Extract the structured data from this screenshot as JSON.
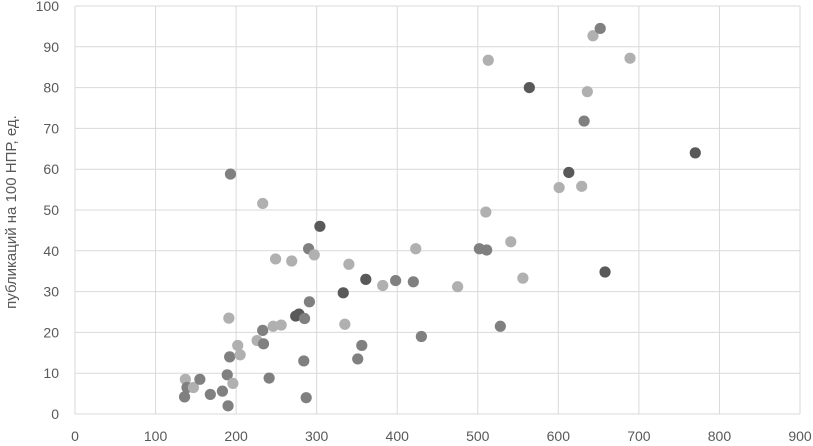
{
  "chart_data": {
    "type": "scatter",
    "xlabel": "",
    "ylabel": "публикаций на 100 НПР, ед.",
    "xlim": [
      0,
      900
    ],
    "ylim": [
      0,
      100
    ],
    "x_ticks": [
      "0",
      "100",
      "200",
      "300",
      "400",
      "500",
      "600",
      "700",
      "800",
      "900"
    ],
    "y_ticks": [
      "0",
      "10",
      "20",
      "30",
      "40",
      "50",
      "60",
      "70",
      "80",
      "90",
      "100"
    ],
    "grid": true,
    "colors": {
      "dark": "#595959",
      "medium": "#808080",
      "light": "#b0b0b0",
      "grid": "#d9d9d9"
    },
    "points": [
      {
        "x": 137,
        "y": 8.5,
        "c": "light"
      },
      {
        "x": 139,
        "y": 6.5,
        "c": "medium"
      },
      {
        "x": 147,
        "y": 6.5,
        "c": "light"
      },
      {
        "x": 155,
        "y": 8.5,
        "c": "medium"
      },
      {
        "x": 136,
        "y": 4.2,
        "c": "medium"
      },
      {
        "x": 168,
        "y": 4.8,
        "c": "medium"
      },
      {
        "x": 183,
        "y": 5.6,
        "c": "medium"
      },
      {
        "x": 189,
        "y": 9.6,
        "c": "medium"
      },
      {
        "x": 190,
        "y": 2.0,
        "c": "medium"
      },
      {
        "x": 192,
        "y": 14.0,
        "c": "medium"
      },
      {
        "x": 191,
        "y": 23.5,
        "c": "light"
      },
      {
        "x": 196,
        "y": 7.5,
        "c": "light"
      },
      {
        "x": 202,
        "y": 16.8,
        "c": "light"
      },
      {
        "x": 205,
        "y": 14.5,
        "c": "light"
      },
      {
        "x": 193,
        "y": 58.8,
        "c": "medium"
      },
      {
        "x": 226,
        "y": 18.0,
        "c": "light"
      },
      {
        "x": 233,
        "y": 20.5,
        "c": "medium"
      },
      {
        "x": 234,
        "y": 17.2,
        "c": "medium"
      },
      {
        "x": 233,
        "y": 51.6,
        "c": "light"
      },
      {
        "x": 241,
        "y": 8.8,
        "c": "medium"
      },
      {
        "x": 246,
        "y": 21.5,
        "c": "light"
      },
      {
        "x": 249,
        "y": 38.0,
        "c": "light"
      },
      {
        "x": 256,
        "y": 21.8,
        "c": "light"
      },
      {
        "x": 269,
        "y": 37.5,
        "c": "light"
      },
      {
        "x": 274,
        "y": 24.0,
        "c": "dark"
      },
      {
        "x": 278,
        "y": 24.5,
        "c": "dark"
      },
      {
        "x": 285,
        "y": 23.4,
        "c": "medium"
      },
      {
        "x": 284,
        "y": 13.0,
        "c": "medium"
      },
      {
        "x": 287,
        "y": 4.0,
        "c": "medium"
      },
      {
        "x": 291,
        "y": 27.5,
        "c": "medium"
      },
      {
        "x": 290,
        "y": 40.5,
        "c": "medium"
      },
      {
        "x": 297,
        "y": 39.0,
        "c": "light"
      },
      {
        "x": 304,
        "y": 46.0,
        "c": "dark"
      },
      {
        "x": 333,
        "y": 29.7,
        "c": "dark"
      },
      {
        "x": 335,
        "y": 22.0,
        "c": "light"
      },
      {
        "x": 340,
        "y": 36.7,
        "c": "light"
      },
      {
        "x": 351,
        "y": 13.5,
        "c": "medium"
      },
      {
        "x": 356,
        "y": 16.8,
        "c": "medium"
      },
      {
        "x": 361,
        "y": 33.0,
        "c": "dark"
      },
      {
        "x": 382,
        "y": 31.5,
        "c": "light"
      },
      {
        "x": 398,
        "y": 32.7,
        "c": "medium"
      },
      {
        "x": 420,
        "y": 32.4,
        "c": "medium"
      },
      {
        "x": 423,
        "y": 40.5,
        "c": "light"
      },
      {
        "x": 430,
        "y": 19.0,
        "c": "medium"
      },
      {
        "x": 475,
        "y": 31.2,
        "c": "light"
      },
      {
        "x": 502,
        "y": 40.5,
        "c": "medium"
      },
      {
        "x": 511,
        "y": 40.2,
        "c": "medium"
      },
      {
        "x": 510,
        "y": 49.5,
        "c": "light"
      },
      {
        "x": 513,
        "y": 86.7,
        "c": "light"
      },
      {
        "x": 528,
        "y": 21.5,
        "c": "medium"
      },
      {
        "x": 541,
        "y": 42.2,
        "c": "light"
      },
      {
        "x": 556,
        "y": 33.3,
        "c": "light"
      },
      {
        "x": 564,
        "y": 80.0,
        "c": "dark"
      },
      {
        "x": 601,
        "y": 55.5,
        "c": "light"
      },
      {
        "x": 613,
        "y": 59.2,
        "c": "dark"
      },
      {
        "x": 629,
        "y": 55.8,
        "c": "light"
      },
      {
        "x": 632,
        "y": 71.8,
        "c": "medium"
      },
      {
        "x": 636,
        "y": 79.0,
        "c": "light"
      },
      {
        "x": 643,
        "y": 92.7,
        "c": "light"
      },
      {
        "x": 652,
        "y": 94.5,
        "c": "medium"
      },
      {
        "x": 658,
        "y": 34.8,
        "c": "dark"
      },
      {
        "x": 689,
        "y": 87.2,
        "c": "light"
      },
      {
        "x": 770,
        "y": 64.0,
        "c": "dark"
      }
    ]
  }
}
